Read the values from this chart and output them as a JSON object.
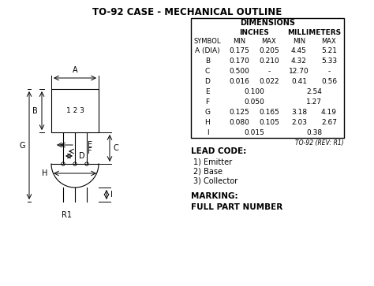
{
  "title": "TO-92 CASE - MECHANICAL OUTLINE",
  "table_header": "DIMENSIONS",
  "rows": [
    [
      "A (DIA)",
      "0.175",
      "0.205",
      "4.45",
      "5.21"
    ],
    [
      "B",
      "0.170",
      "0.210",
      "4.32",
      "5.33"
    ],
    [
      "C",
      "0.500",
      "-",
      "12.70",
      "-"
    ],
    [
      "D",
      "0.016",
      "0.022",
      "0.41",
      "0.56"
    ],
    [
      "E",
      "0.100",
      "",
      "2.54",
      ""
    ],
    [
      "F",
      "0.050",
      "",
      "1.27",
      ""
    ],
    [
      "G",
      "0.125",
      "0.165",
      "3.18",
      "4.19"
    ],
    [
      "H",
      "0.080",
      "0.105",
      "2.03",
      "2.67"
    ],
    [
      "I",
      "0.015",
      "",
      "0.38",
      ""
    ]
  ],
  "table_note": "TO-92 (REV: R1)",
  "lead_code_title": "LEAD CODE:",
  "lead_code": [
    "1) Emitter",
    "2) Base",
    "3) Collector"
  ],
  "marking_title": "MARKING:",
  "marking_value": "FULL PART NUMBER",
  "r1_label": "R1",
  "bg_color": "#ffffff"
}
